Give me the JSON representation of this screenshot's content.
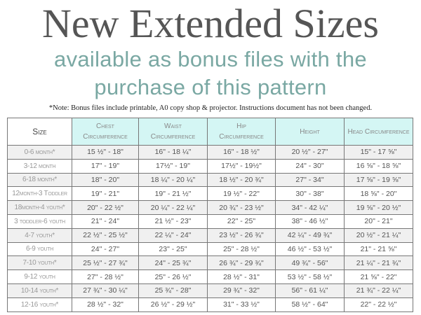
{
  "title": "New Extended Sizes",
  "subtitle_lines": [
    "available as bonus files with the",
    "purchase of this pattern"
  ],
  "note": "*Note: Bonus files include printable, A0 copy shop & projector. Instructions document has not been changed.",
  "colors": {
    "title": "#555555",
    "subtitle": "#7aa8a3",
    "header_bg": "#d4f6f4",
    "row_alt": "#f0f0f0"
  },
  "table": {
    "headers": [
      [
        "Size"
      ],
      [
        "Chest",
        "Circumference"
      ],
      [
        "Waist",
        "Circumference"
      ],
      [
        "Hip",
        "Circumference"
      ],
      [
        "Height"
      ],
      [
        "Head Circumference"
      ]
    ],
    "rows": [
      [
        "0-6 month*",
        "15 ½\" - 18\"",
        "16\" - 18 ¼\"",
        "16\" - 18 ½\"",
        "20 ½\" - 27\"",
        "15\" - 17 ⅝\""
      ],
      [
        "3-12 month",
        "17\" - 19\"",
        "17½\" - 19\"",
        "17½\" - 19½\"",
        "24\" - 30\"",
        "16 ⅝\" - 18 ⅝\""
      ],
      [
        "6-18 month*",
        "18\" - 20\"",
        "18 ¼\" - 20 ¼\"",
        "18 ½\" - 20 ¾\"",
        "27\" - 34\"",
        "17 ⅝\" - 19 ⅝\""
      ],
      [
        "12month-3 Toddler",
        "19\" - 21\"",
        "19\" - 21 ½\"",
        "19 ½\" - 22\"",
        "30\" - 38\"",
        "18 ⅝\" - 20\""
      ],
      [
        "18month-4 youth*",
        "20\" - 22 ½\"",
        "20 ¼\" - 22 ¼\"",
        "20 ¾\" - 23 ½\"",
        "34\" - 42 ¼\"",
        "19 ⅝\" - 20 ½\""
      ],
      [
        "3 toddler-6 youth",
        "21\" - 24\"",
        "21 ½\" - 23\"",
        "22\" - 25\"",
        "38\" - 46 ½\"",
        "20\" - 21\""
      ],
      [
        "4-7 youth*",
        "22 ½\" - 25 ½\"",
        "22 ¼\" - 24\"",
        "23 ½\" - 26 ¾\"",
        "42 ¼\" - 49 ¾\"",
        "20 ½\" - 21 ¼\""
      ],
      [
        "6-9 youth",
        "24\" - 27\"",
        "23\" - 25\"",
        "25\" - 28 ½\"",
        "46 ½\" - 53 ½\"",
        "21\" - 21 ⅝\""
      ],
      [
        "7-10 youth*",
        "25 ½\" - 27 ¾\"",
        "24\" - 25 ¾\"",
        "26 ¾\" - 29 ¾\"",
        "49 ¾\" - 56\"",
        "21 ¼\" - 21 ¾\""
      ],
      [
        "9-12 youth",
        "27\" - 28 ½\"",
        "25\" - 26 ½\"",
        "28 ½\" - 31\"",
        "53 ½\" - 58 ½\"",
        "21 ⅝\" - 22\""
      ],
      [
        "10-14 youth*",
        "27 ¾\" - 30 ¼\"",
        "25 ¾\" - 28\"",
        "29 ¾\" - 32\"",
        "56\" - 61 ¼\"",
        "21 ¾\" - 22 ¼\""
      ],
      [
        "12-16 youth*",
        "28 ½\" - 32\"",
        "26 ½\" - 29 ½\"",
        "31\" - 33 ½\"",
        "58 ½\" - 64\"",
        "22\" - 22 ½\""
      ]
    ]
  }
}
